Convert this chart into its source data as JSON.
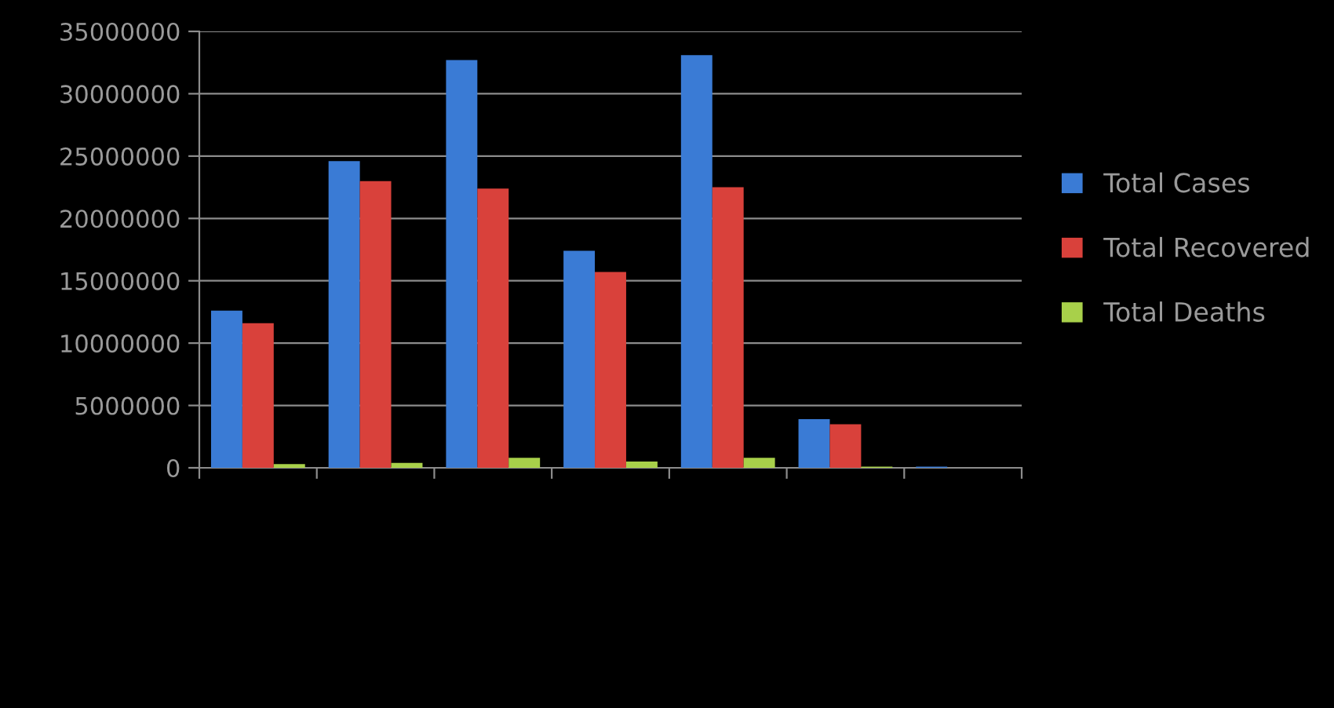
{
  "chart_data": {
    "type": "bar",
    "categories": [
      null,
      null,
      null,
      null,
      null,
      null,
      null
    ],
    "series": [
      {
        "name": "Total Cases",
        "color": "#3a7bd5",
        "values": [
          12600000,
          24600000,
          32700000,
          17400000,
          33100000,
          3900000,
          100000
        ]
      },
      {
        "name": "Total Recovered",
        "color": "#d9413b",
        "values": [
          11600000,
          23000000,
          22400000,
          15700000,
          22500000,
          3500000,
          0
        ]
      },
      {
        "name": "Total Deaths",
        "color": "#a8d04a",
        "values": [
          300000,
          400000,
          800000,
          500000,
          800000,
          100000,
          0
        ]
      }
    ],
    "ylim": [
      0,
      35000000
    ],
    "yticks": [
      0,
      5000000,
      10000000,
      15000000,
      20000000,
      25000000,
      30000000,
      35000000
    ],
    "grid": "y",
    "legend": "right"
  }
}
